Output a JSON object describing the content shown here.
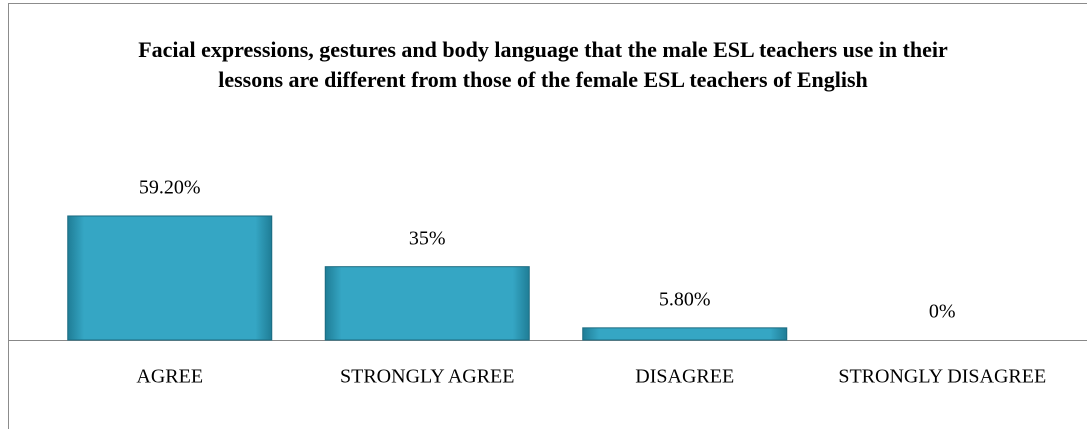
{
  "chart_data": {
    "type": "bar",
    "title": "Facial expressions, gestures and body language that the male ESL teachers use in their lessons are different from those of the female ESL teachers of English",
    "categories": [
      "AGREE",
      "STRONGLY AGREE",
      "DISAGREE",
      "STRONGLY DISAGREE"
    ],
    "values": [
      59.2,
      35,
      5.8,
      0
    ],
    "value_labels": [
      "59.20%",
      "35%",
      "5.80%",
      "0%"
    ],
    "color": "#31a0bd"
  }
}
